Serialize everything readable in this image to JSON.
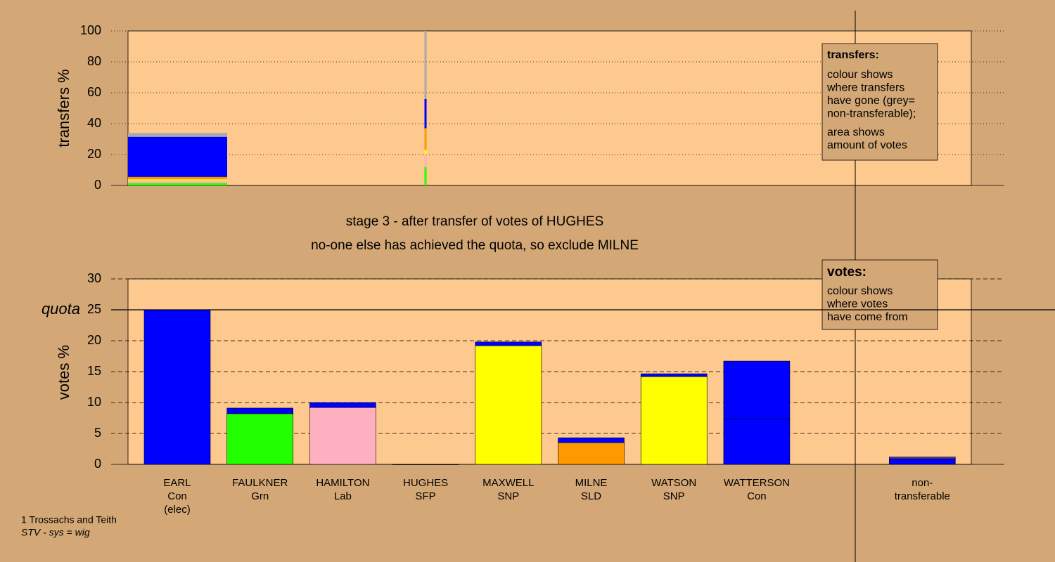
{
  "chart_data": [
    {
      "type": "bar",
      "stacked": true,
      "ylabel": "transfers %",
      "ylim": [
        0,
        100
      ],
      "yticks": [
        0,
        20,
        40,
        60,
        80,
        100
      ],
      "grid": true,
      "series": [
        {
          "color": "#22ff00",
          "values": [
            1.5,
            12
          ]
        },
        {
          "color": "#ffb0c0",
          "values": [
            1.5,
            8
          ]
        },
        {
          "color": "#ffff00",
          "values": [
            1,
            3
          ]
        },
        {
          "color": "#ff9900",
          "values": [
            1.5,
            14
          ]
        },
        {
          "color": "#0000ff",
          "values": [
            26,
            19
          ]
        },
        {
          "color": "#aaaaaa",
          "values": [
            2.5,
            44
          ]
        }
      ],
      "note": {
        "title": "transfers:",
        "paragraphs": [
          [
            "colour shows",
            "where transfers",
            "have gone (grey=",
            "non-transferable);"
          ],
          [
            "area shows",
            "amount of votes"
          ]
        ]
      }
    },
    {
      "type": "bar",
      "stacked": true,
      "title": "stage 3 - after transfer of votes of HUGHES",
      "subtitle": "no-one else has achieved the quota, so exclude MILNE",
      "ylabel": "votes %",
      "ylim": [
        0,
        30
      ],
      "yticks": [
        0,
        5,
        10,
        15,
        20,
        25,
        30
      ],
      "grid": true,
      "quota": {
        "value": 25,
        "label": "quota"
      },
      "categories": [
        [
          "EARL",
          "Con",
          "(elec)"
        ],
        [
          "FAULKNER",
          "Grn"
        ],
        [
          "HAMILTON",
          "Lab"
        ],
        [
          "HUGHES",
          "SFP"
        ],
        [
          "MAXWELL",
          "SNP"
        ],
        [
          "MILNE",
          "SLD"
        ],
        [
          "WATSON",
          "SNP"
        ],
        [
          "WATTERSON",
          "Con"
        ],
        null,
        [
          "non-",
          "transferable"
        ]
      ],
      "series": [
        {
          "colors": [
            "#0000ff",
            "#22ff00",
            "#ffb0c0",
            "#0000ff",
            "#ffff00",
            "#ff9900",
            "#ffff00",
            "#0000ff",
            null,
            "#0000ff"
          ],
          "values": [
            25,
            8.2,
            9.2,
            0,
            19.2,
            3.5,
            14.2,
            7.3,
            null,
            0.9
          ]
        },
        {
          "color": "#0000ff",
          "values": [
            null,
            0.9,
            0.8,
            null,
            0.6,
            0.8,
            0.45,
            9.4,
            null,
            null
          ]
        },
        {
          "color": "#5a3a9a",
          "values": [
            null,
            null,
            null,
            null,
            null,
            null,
            null,
            null,
            null,
            0.3
          ]
        }
      ],
      "note": {
        "title": "votes:",
        "paragraphs": [
          [
            "colour shows",
            "where votes",
            "have come from"
          ]
        ]
      }
    }
  ],
  "footer": {
    "constituency": "1 Trossachs and Teith",
    "system": "STV - sys = wig"
  }
}
